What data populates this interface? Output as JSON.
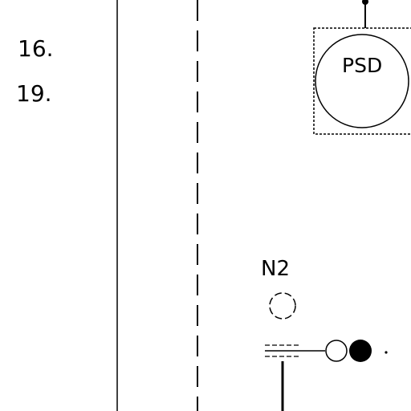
{
  "labels": {
    "row_16": "16.",
    "row_19": "19.",
    "component": "PSD",
    "node": "N2"
  },
  "colors": {
    "line": "#000000",
    "background": "#ffffff",
    "valve_closed": "#000000",
    "valve_open": "#ffffff"
  }
}
